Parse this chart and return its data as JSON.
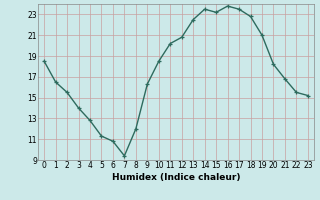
{
  "x": [
    0,
    1,
    2,
    3,
    4,
    5,
    6,
    7,
    8,
    9,
    10,
    11,
    12,
    13,
    14,
    15,
    16,
    17,
    18,
    19,
    20,
    21,
    22,
    23
  ],
  "y": [
    18.5,
    16.5,
    15.5,
    14.0,
    12.8,
    11.3,
    10.8,
    9.4,
    12.0,
    16.3,
    18.5,
    20.2,
    20.8,
    22.5,
    23.5,
    23.2,
    23.8,
    23.5,
    22.8,
    21.0,
    18.2,
    16.8,
    15.5,
    15.2
  ],
  "line_color": "#2e6b5e",
  "bg_color": "#cce9e9",
  "grid_color": "#c8a0a0",
  "xlabel": "Humidex (Indice chaleur)",
  "xlim": [
    -0.5,
    23.5
  ],
  "ylim": [
    9,
    24
  ],
  "yticks": [
    9,
    11,
    13,
    15,
    17,
    19,
    21,
    23
  ],
  "xticks": [
    0,
    1,
    2,
    3,
    4,
    5,
    6,
    7,
    8,
    9,
    10,
    11,
    12,
    13,
    14,
    15,
    16,
    17,
    18,
    19,
    20,
    21,
    22,
    23
  ],
  "marker": "+",
  "markersize": 3.5,
  "linewidth": 1.0,
  "tick_fontsize": 5.5,
  "xlabel_fontsize": 6.5
}
